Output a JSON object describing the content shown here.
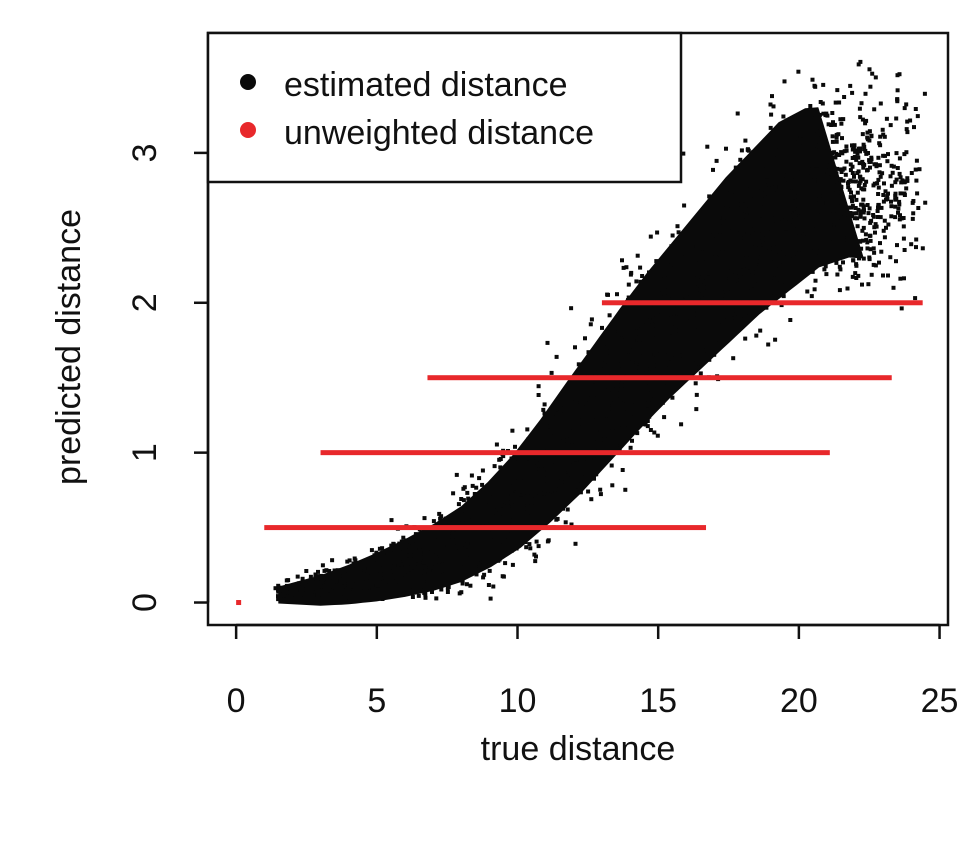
{
  "chart_data": {
    "type": "scatter",
    "title": "",
    "xlabel": "true distance",
    "ylabel": "predicted distance",
    "xlim": [
      -1,
      25.3
    ],
    "ylim": [
      -0.15,
      3.8
    ],
    "xticks": [
      0,
      5,
      10,
      15,
      20,
      25
    ],
    "yticks": [
      0,
      1,
      2,
      3
    ],
    "xtick_labels": [
      "0",
      "5",
      "10",
      "15",
      "20",
      "25"
    ],
    "ytick_labels": [
      "0",
      "1",
      "2",
      "3"
    ],
    "grid": false,
    "legend_position": "top-left",
    "series": [
      {
        "name": "estimated distance",
        "color": "#0a0a0a",
        "marker": "square",
        "description_points": [
          {
            "x": 1.0,
            "y": 0.04
          },
          {
            "x": 2.0,
            "y": 0.06
          },
          {
            "x": 3.0,
            "y": 0.08
          },
          {
            "x": 4.0,
            "y": 0.12
          },
          {
            "x": 5.0,
            "y": 0.17
          },
          {
            "x": 6.0,
            "y": 0.23
          },
          {
            "x": 7.0,
            "y": 0.3
          },
          {
            "x": 8.0,
            "y": 0.39
          },
          {
            "x": 9.0,
            "y": 0.52
          },
          {
            "x": 10.0,
            "y": 0.68
          },
          {
            "x": 11.0,
            "y": 0.88
          },
          {
            "x": 12.0,
            "y": 1.1
          },
          {
            "x": 13.0,
            "y": 1.33
          },
          {
            "x": 14.0,
            "y": 1.56
          },
          {
            "x": 15.0,
            "y": 1.78
          },
          {
            "x": 16.0,
            "y": 1.98
          },
          {
            "x": 17.0,
            "y": 2.18
          },
          {
            "x": 18.0,
            "y": 2.38
          },
          {
            "x": 19.0,
            "y": 2.55
          },
          {
            "x": 20.0,
            "y": 2.72
          },
          {
            "x": 21.0,
            "y": 2.8
          }
        ]
      },
      {
        "name": "unweighted distance",
        "color": "#e8282b",
        "marker": "circle",
        "segments": [
          {
            "y": 0.0,
            "x_from": 0.0,
            "x_to": 0.1
          },
          {
            "y": 0.5,
            "x_from": 1.0,
            "x_to": 16.7
          },
          {
            "y": 1.0,
            "x_from": 3.0,
            "x_to": 21.1
          },
          {
            "y": 1.5,
            "x_from": 6.8,
            "x_to": 23.3
          },
          {
            "y": 2.0,
            "x_from": 13.0,
            "x_to": 24.4
          }
        ]
      }
    ]
  }
}
